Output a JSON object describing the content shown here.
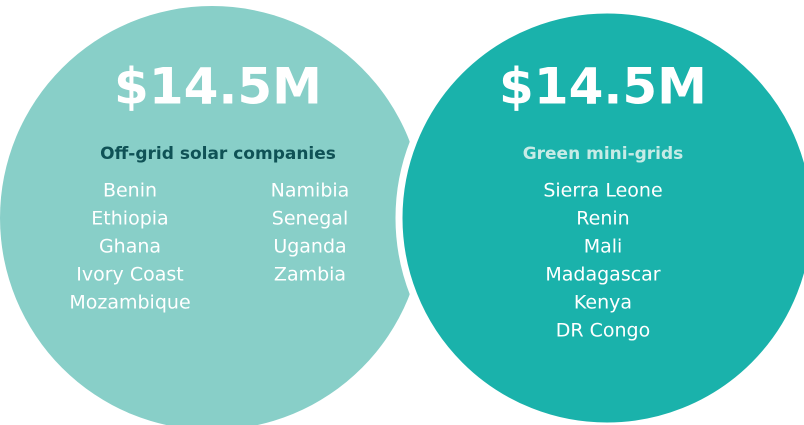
{
  "circles": [
    {
      "amount": "$14.5M",
      "label": "Off-grid solar companies",
      "columns": [
        [
          "Benin",
          "Ethiopia",
          "Ghana",
          "Ivory Coast",
          "Mozambique"
        ],
        [
          "Namibia",
          "Senegal",
          "Uganda",
          "Zambia"
        ]
      ]
    },
    {
      "amount": "$14.5M",
      "label": "Green mini-grids",
      "columns": [
        [
          "Sierra Leone",
          "Renin",
          "Mali",
          "Madagascar",
          "Kenya",
          "DR Congo"
        ]
      ]
    }
  ]
}
